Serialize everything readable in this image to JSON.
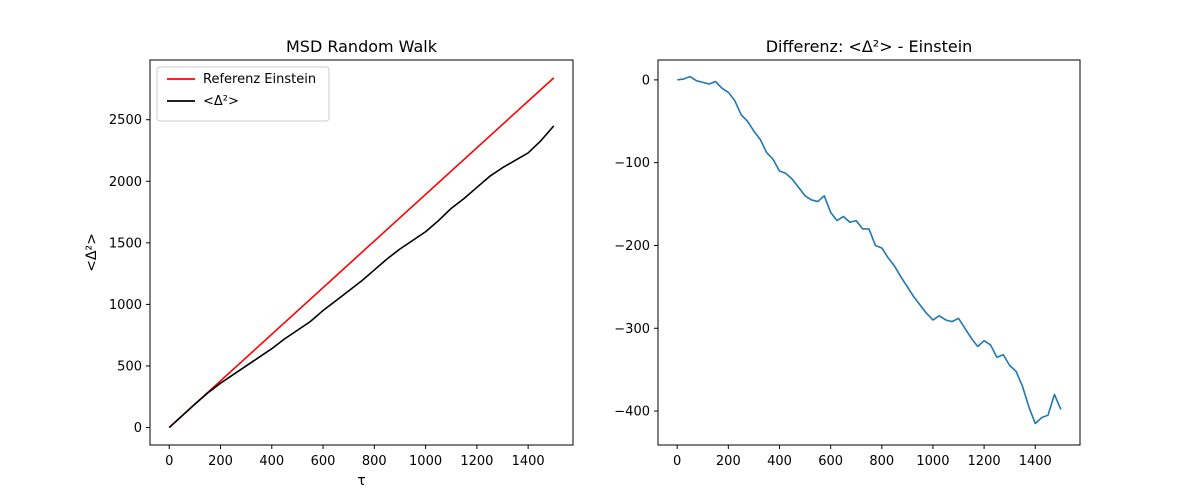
{
  "chart_data": [
    {
      "type": "line",
      "title": "MSD Random Walk",
      "xlabel": "τ",
      "ylabel": "<Δ²>",
      "xlim": [
        -75,
        1575
      ],
      "ylim": [
        -142,
        2985
      ],
      "x_ticks": [
        0,
        200,
        400,
        600,
        800,
        1000,
        1200,
        1400
      ],
      "y_ticks": [
        0,
        500,
        1000,
        1500,
        2000,
        2500
      ],
      "grid": false,
      "legend": "top-left",
      "series": [
        {
          "name": "Referenz Einstein",
          "color": "#ff0000",
          "x": [
            0,
            1500
          ],
          "y": [
            0,
            2840
          ]
        },
        {
          "name": "<Δ²>",
          "color": "#000000",
          "x": [
            0,
            50,
            100,
            150,
            200,
            250,
            300,
            350,
            400,
            450,
            500,
            550,
            600,
            650,
            700,
            750,
            800,
            850,
            900,
            950,
            1000,
            1050,
            1100,
            1150,
            1200,
            1250,
            1300,
            1350,
            1400,
            1450,
            1500
          ],
          "y": [
            0,
            95,
            190,
            280,
            360,
            430,
            500,
            570,
            640,
            720,
            790,
            860,
            950,
            1030,
            1110,
            1190,
            1280,
            1370,
            1450,
            1520,
            1590,
            1680,
            1780,
            1860,
            1950,
            2040,
            2110,
            2170,
            2230,
            2330,
            2450
          ]
        }
      ]
    },
    {
      "type": "line",
      "title": "Differenz: <Δ²> - Einstein",
      "xlabel": "",
      "ylabel": "",
      "xlim": [
        -75,
        1575
      ],
      "ylim": [
        -441,
        24
      ],
      "x_ticks": [
        0,
        200,
        400,
        600,
        800,
        1000,
        1200,
        1400
      ],
      "y_ticks": [
        0,
        -100,
        -200,
        -300,
        -400
      ],
      "grid": false,
      "series": [
        {
          "color": "#1f77b4",
          "x": [
            0,
            25,
            50,
            75,
            100,
            125,
            150,
            175,
            200,
            225,
            250,
            275,
            300,
            325,
            350,
            375,
            400,
            425,
            450,
            475,
            500,
            525,
            550,
            575,
            600,
            625,
            650,
            675,
            700,
            725,
            750,
            775,
            800,
            825,
            850,
            875,
            900,
            925,
            950,
            975,
            1000,
            1025,
            1050,
            1075,
            1100,
            1125,
            1150,
            1175,
            1200,
            1225,
            1250,
            1275,
            1300,
            1325,
            1350,
            1375,
            1400,
            1425,
            1450,
            1475,
            1500
          ],
          "y": [
            0,
            1,
            4,
            -1,
            -3,
            -5,
            -2,
            -10,
            -15,
            -25,
            -42,
            -50,
            -62,
            -72,
            -88,
            -96,
            -110,
            -113,
            -120,
            -130,
            -140,
            -145,
            -147,
            -140,
            -160,
            -170,
            -165,
            -172,
            -170,
            -180,
            -180,
            -200,
            -203,
            -215,
            -225,
            -238,
            -250,
            -262,
            -272,
            -282,
            -290,
            -285,
            -290,
            -292,
            -288,
            -300,
            -312,
            -322,
            -315,
            -320,
            -335,
            -332,
            -345,
            -352,
            -370,
            -395,
            -415,
            -408,
            -405,
            -380,
            -398
          ]
        }
      ]
    }
  ]
}
